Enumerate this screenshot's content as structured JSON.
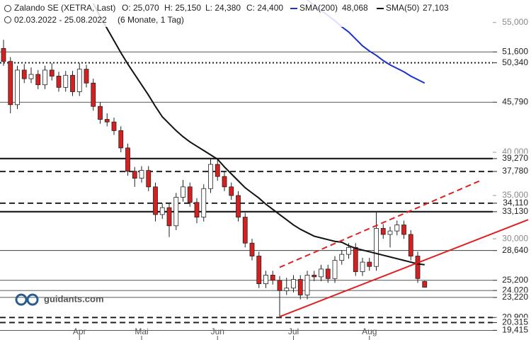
{
  "chart_data": {
    "type": "candlestick",
    "title": "Zalando SE (XETRA, Last)",
    "header": {
      "open": "O: 25,070",
      "high": "H: 25,150",
      "low": "L: 24,380",
      "close": "C: 24,400",
      "range": "02.03.2022 - 25.08.2022",
      "period": "(6 Monate, 1 Tag)"
    },
    "watermark": "guidants.com",
    "categories": [
      null,
      null,
      null,
      null,
      null,
      null,
      null,
      null,
      null,
      null,
      null,
      "Apr",
      null,
      null,
      null,
      null,
      null,
      null,
      null,
      null,
      "Mai",
      null,
      null,
      null,
      null,
      null,
      null,
      null,
      null,
      null,
      null,
      "Jun",
      null,
      null,
      null,
      null,
      null,
      null,
      null,
      null,
      null,
      null,
      "Jul",
      null,
      null,
      null,
      null,
      null,
      null,
      null,
      null,
      null,
      null,
      "Aug",
      null,
      null,
      null,
      null,
      null,
      null,
      null,
      null
    ],
    "open": [
      52000,
      50500,
      45500,
      49500,
      48500,
      49000,
      47800,
      49500,
      48800,
      47500,
      48900,
      47000,
      49600,
      48000,
      45300,
      43800,
      43500,
      42500,
      40500,
      37800,
      37000,
      37900,
      36000,
      32800,
      33600,
      31500,
      34800,
      36000,
      34200,
      32500,
      35800,
      38600,
      37200,
      36000,
      35000,
      32500,
      29500,
      28000,
      24800,
      25800,
      25200,
      24000,
      24300,
      25300,
      23500,
      25800,
      25600,
      26500,
      25400,
      27500,
      28200,
      29000,
      26200,
      27300,
      26800,
      31200,
      30500,
      30900,
      31600,
      30500,
      28000,
      25070
    ],
    "high": [
      53000,
      51000,
      50000,
      50200,
      49800,
      49500,
      50000,
      50300,
      49300,
      49400,
      49400,
      50300,
      50100,
      48500,
      45800,
      44500,
      44000,
      43000,
      41000,
      38300,
      38400,
      38400,
      36500,
      34100,
      34100,
      35300,
      36800,
      36500,
      34700,
      36300,
      39300,
      39100,
      37700,
      36500,
      35500,
      33000,
      30000,
      28500,
      26300,
      26300,
      25700,
      25500,
      25800,
      25800,
      26300,
      26300,
      27000,
      27000,
      28000,
      28700,
      29500,
      29500,
      27800,
      27800,
      33100,
      31700,
      31400,
      32100,
      32100,
      31000,
      28500,
      25150
    ],
    "low": [
      50000,
      44500,
      45000,
      48000,
      48000,
      47300,
      47300,
      48300,
      47000,
      47000,
      46500,
      46500,
      47500,
      44800,
      43300,
      43000,
      42000,
      40000,
      37300,
      36000,
      36500,
      35500,
      32000,
      32300,
      30200,
      31000,
      34300,
      33700,
      31800,
      32000,
      35300,
      36700,
      35500,
      34500,
      32000,
      29000,
      27500,
      24300,
      24300,
      24700,
      21000,
      23500,
      23800,
      23000,
      23000,
      25100,
      25100,
      24900,
      24900,
      27000,
      27700,
      25700,
      25700,
      26300,
      26300,
      30000,
      29000,
      30400,
      30000,
      27500,
      24900,
      24380
    ],
    "close": [
      50500,
      45500,
      49500,
      48500,
      49000,
      47800,
      49500,
      48800,
      47500,
      48900,
      47000,
      49600,
      48000,
      45300,
      43800,
      43500,
      42500,
      40500,
      37800,
      37000,
      37900,
      36000,
      32800,
      33600,
      31500,
      34800,
      36000,
      34200,
      32500,
      35800,
      38600,
      37200,
      36000,
      35000,
      32500,
      29500,
      28000,
      24800,
      25800,
      25200,
      24000,
      24300,
      25300,
      23500,
      25800,
      25600,
      26500,
      25400,
      27500,
      28200,
      29000,
      26200,
      27300,
      26800,
      31200,
      30500,
      30900,
      31600,
      30500,
      28000,
      25400,
      24400
    ],
    "up_color": "#ffffff",
    "down_color": "#d62020",
    "wick_color": "#222222",
    "series": [
      {
        "name": "SMA(200)",
        "value_label": "48,068",
        "color": "#1a33cc",
        "values": [
          null,
          null,
          null,
          null,
          null,
          null,
          null,
          null,
          null,
          null,
          null,
          null,
          null,
          null,
          null,
          null,
          null,
          null,
          null,
          null,
          null,
          null,
          null,
          null,
          null,
          null,
          null,
          null,
          null,
          null,
          null,
          null,
          null,
          null,
          null,
          null,
          null,
          null,
          null,
          null,
          null,
          null,
          null,
          null,
          57600,
          57000,
          56400,
          55800,
          55200,
          54500,
          53900,
          53100,
          52300,
          51700,
          51200,
          50600,
          50100,
          49700,
          49300,
          48800,
          48400,
          48000
        ]
      },
      {
        "name": "SMA(50)",
        "value_label": "27,103",
        "color": "#111111",
        "values": [
          null,
          null,
          null,
          null,
          null,
          null,
          null,
          null,
          null,
          null,
          null,
          null,
          null,
          57200,
          55700,
          54300,
          52900,
          51500,
          50200,
          49000,
          47800,
          46600,
          45300,
          44100,
          43300,
          42500,
          41800,
          41200,
          40700,
          40200,
          39700,
          39200,
          38300,
          37500,
          36700,
          35900,
          35300,
          34700,
          34000,
          33400,
          32800,
          32200,
          31600,
          31100,
          30700,
          30300,
          30100,
          29900,
          29700,
          29600,
          29200,
          28900,
          28700,
          28500,
          28300,
          28100,
          27900,
          27700,
          27500,
          27300,
          27100,
          27000
        ]
      }
    ],
    "levels": [
      {
        "value": 51600,
        "label": "51,600",
        "style": "solid"
      },
      {
        "value": 50340,
        "label": "50,340",
        "style": "dotted"
      },
      {
        "value": 45790,
        "label": "45,790",
        "style": "solid"
      },
      {
        "value": 39270,
        "label": "39,270",
        "style": "thick"
      },
      {
        "value": 37780,
        "label": "37,780",
        "style": "dashed"
      },
      {
        "value": 34110,
        "label": "34,110",
        "style": "dashed"
      },
      {
        "value": 33130,
        "label": "33,130",
        "style": "thick"
      },
      {
        "value": 28640,
        "label": "28,640",
        "style": "solid"
      },
      {
        "value": 25200,
        "label": "25,200",
        "style": "solid"
      },
      {
        "value": 24020,
        "label": "24,020",
        "style": "solid"
      },
      {
        "value": 23220,
        "label": "23,220",
        "style": "solid"
      },
      {
        "value": 20900,
        "label": "20,900",
        "style": "dashed"
      },
      {
        "value": 20315,
        "label": "20,315",
        "style": "dashed"
      },
      {
        "value": 19415,
        "label": "19,415",
        "style": "solid"
      }
    ],
    "trendlines": [
      {
        "from": [
          40,
          21000
        ],
        "to": [
          76,
          32200
        ],
        "color": "#e02020",
        "style": "solid"
      },
      {
        "from": [
          40,
          26700
        ],
        "to": [
          69,
          36700
        ],
        "color": "#e02020",
        "style": "dashed"
      }
    ],
    "ylim": [
      18300,
      57600
    ],
    "yticks": [
      {
        "value": 30000,
        "label": "30,000"
      },
      {
        "value": 35000,
        "label": "35,000"
      },
      {
        "value": 40000,
        "label": "40,000"
      },
      {
        "value": 55000,
        "label": "55,000"
      }
    ]
  }
}
